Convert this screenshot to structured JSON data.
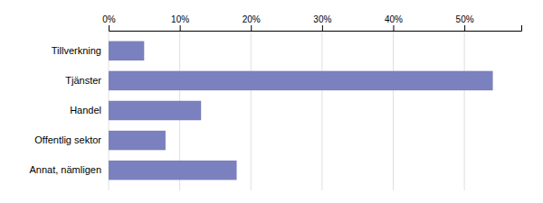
{
  "chart_data": {
    "type": "bar",
    "orientation": "horizontal",
    "categories": [
      "Tillverkning",
      "Tjänster",
      "Handel",
      "Offentlig sektor",
      "Annat, nämligen"
    ],
    "values": [
      5,
      54,
      13,
      8,
      18
    ],
    "color": "#7b80be",
    "xlim": [
      0,
      58
    ],
    "xticks": [
      {
        "value": 0,
        "label": "0%"
      },
      {
        "value": 10,
        "label": "10%"
      },
      {
        "value": 20,
        "label": "20%"
      },
      {
        "value": 30,
        "label": "30%"
      },
      {
        "value": 40,
        "label": "40%"
      },
      {
        "value": 50,
        "label": "50%"
      }
    ],
    "grid": true
  }
}
